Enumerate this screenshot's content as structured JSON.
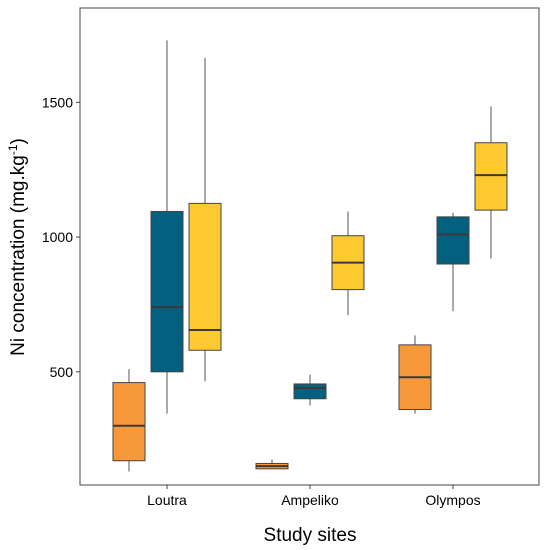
{
  "chart_data": {
    "type": "boxplot",
    "xlabel": "Study sites",
    "ylabel_main": "Ni concentration (mg.kg",
    "ylabel_sup": "-1",
    "ylabel_tail": ")",
    "categories": [
      "Loutra",
      "Ampeliko",
      "Olympos"
    ],
    "ylim": [
      80,
      1850
    ],
    "yticks": [
      500,
      1000,
      1500
    ],
    "grid": false,
    "legend": "none",
    "series": [
      {
        "color": "#F7993A",
        "boxes": [
          {
            "min": 130,
            "q1": 170,
            "median": 300,
            "q3": 460,
            "max": 510
          },
          {
            "min": 140,
            "q1": 140,
            "median": 150,
            "q3": 160,
            "max": 175
          },
          {
            "min": 345,
            "q1": 360,
            "median": 480,
            "q3": 600,
            "max": 635
          }
        ]
      },
      {
        "color": "#03607F",
        "boxes": [
          {
            "min": 345,
            "q1": 500,
            "median": 740,
            "q3": 1095,
            "max": 1730
          },
          {
            "min": 375,
            "q1": 400,
            "median": 440,
            "q3": 455,
            "max": 490
          },
          {
            "min": 725,
            "q1": 900,
            "median": 1010,
            "q3": 1075,
            "max": 1090
          }
        ]
      },
      {
        "color": "#FDC931",
        "boxes": [
          {
            "min": 465,
            "q1": 580,
            "median": 655,
            "q3": 1125,
            "max": 1665
          },
          {
            "min": 710,
            "q1": 805,
            "median": 905,
            "q3": 1005,
            "max": 1095
          },
          {
            "min": 920,
            "q1": 1100,
            "median": 1230,
            "q3": 1350,
            "max": 1485
          }
        ]
      }
    ]
  }
}
